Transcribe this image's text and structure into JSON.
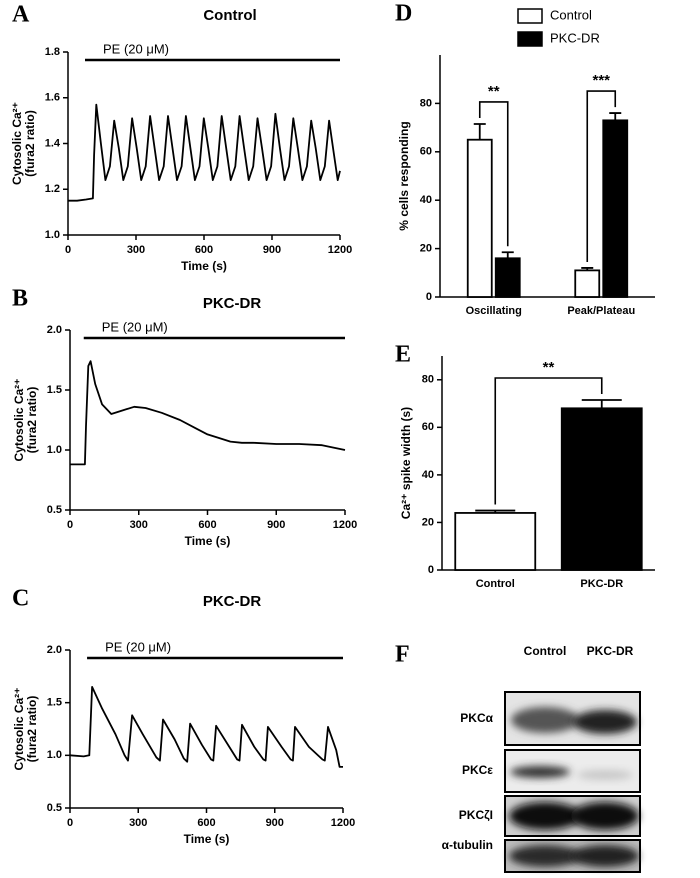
{
  "chart_data": [
    {
      "type": "line",
      "label": "A",
      "title": "Control",
      "x_label": "Time (s)",
      "y_label": [
        "Cytosolic Ca²⁺",
        "(fura2 ratio)"
      ],
      "stimulus": {
        "text": "PE (20 μM)",
        "start": 75,
        "end": 1200
      },
      "xlim": [
        0,
        1200
      ],
      "xticks": [
        0,
        300,
        600,
        900,
        1200
      ],
      "ylim": [
        1,
        1.8
      ],
      "yticks": [
        {
          "value": 1,
          "label": "1.0"
        },
        1.2,
        1.4,
        1.6,
        1.8
      ],
      "color": "#000000",
      "x": [
        0,
        40,
        80,
        110,
        115,
        125,
        145,
        165,
        185,
        204,
        224,
        244,
        264,
        283,
        303,
        323,
        343,
        362,
        382,
        402,
        422,
        441,
        461,
        481,
        501,
        520,
        540,
        560,
        580,
        599,
        619,
        639,
        659,
        678,
        698,
        718,
        738,
        757,
        777,
        797,
        817,
        836,
        856,
        876,
        896,
        915,
        935,
        955,
        975,
        994,
        1014,
        1034,
        1054,
        1073,
        1093,
        1113,
        1133,
        1152,
        1172,
        1190,
        1200
      ],
      "values": [
        1.15,
        1.15,
        1.155,
        1.16,
        1.35,
        1.57,
        1.4,
        1.24,
        1.3,
        1.5,
        1.38,
        1.24,
        1.3,
        1.51,
        1.38,
        1.24,
        1.3,
        1.52,
        1.38,
        1.24,
        1.3,
        1.52,
        1.38,
        1.24,
        1.3,
        1.52,
        1.38,
        1.24,
        1.3,
        1.51,
        1.38,
        1.24,
        1.3,
        1.52,
        1.38,
        1.24,
        1.3,
        1.52,
        1.38,
        1.24,
        1.3,
        1.51,
        1.38,
        1.24,
        1.3,
        1.53,
        1.38,
        1.24,
        1.3,
        1.51,
        1.38,
        1.24,
        1.3,
        1.5,
        1.38,
        1.24,
        1.3,
        1.5,
        1.36,
        1.24,
        1.28
      ]
    },
    {
      "type": "line",
      "label": "B",
      "title": "PKC-DR",
      "x_label": "Time (s)",
      "y_label": [
        "Cytosolic Ca²⁺",
        "(fura2 ratio)"
      ],
      "stimulus": {
        "text": "PE (20 μM)",
        "start": 60,
        "end": 1200
      },
      "xlim": [
        0,
        1200
      ],
      "xticks": [
        0,
        300,
        600,
        900,
        1200
      ],
      "ylim": [
        0.5,
        2
      ],
      "yticks": [
        0.5,
        {
          "value": 1,
          "label": "1.0"
        },
        1.5,
        {
          "value": 2,
          "label": "2.0"
        }
      ],
      "color": "#000000",
      "x": [
        0,
        40,
        65,
        70,
        80,
        90,
        110,
        140,
        180,
        230,
        280,
        330,
        400,
        480,
        550,
        600,
        650,
        700,
        750,
        800,
        900,
        1000,
        1100,
        1150,
        1200
      ],
      "values": [
        0.88,
        0.88,
        0.88,
        1.2,
        1.7,
        1.74,
        1.55,
        1.38,
        1.3,
        1.33,
        1.36,
        1.35,
        1.31,
        1.25,
        1.18,
        1.13,
        1.1,
        1.07,
        1.06,
        1.06,
        1.05,
        1.05,
        1.04,
        1.02,
        1.0
      ]
    },
    {
      "type": "line",
      "label": "C",
      "title": "PKC-DR",
      "x_label": "Time (s)",
      "y_label": [
        "Cytosolic Ca²⁺",
        "(fura2 ratio)"
      ],
      "stimulus": {
        "text": "PE (20 μM)",
        "start": 75,
        "end": 1200
      },
      "xlim": [
        0,
        1200
      ],
      "xticks": [
        0,
        300,
        600,
        900,
        1200
      ],
      "ylim": [
        0.5,
        2
      ],
      "yticks": [
        0.5,
        {
          "value": 1,
          "label": "1.0"
        },
        1.5,
        {
          "value": 2,
          "label": "2.0"
        }
      ],
      "color": "#000000",
      "x": [
        0,
        60,
        85,
        97,
        140,
        200,
        240,
        255,
        273,
        320,
        380,
        395,
        409,
        460,
        500,
        515,
        528,
        580,
        620,
        630,
        642,
        700,
        735,
        745,
        756,
        810,
        850,
        860,
        870,
        930,
        970,
        980,
        989,
        1050,
        1110,
        1120,
        1134,
        1170,
        1185,
        1200
      ],
      "values": [
        1.0,
        0.99,
        1.0,
        1.65,
        1.45,
        1.2,
        1.0,
        0.95,
        1.38,
        1.2,
        0.98,
        0.95,
        1.34,
        1.15,
        0.97,
        0.94,
        1.3,
        1.1,
        0.96,
        0.95,
        1.28,
        1.08,
        0.96,
        0.95,
        1.29,
        1.08,
        0.96,
        0.95,
        1.27,
        1.08,
        0.96,
        0.95,
        1.27,
        1.08,
        0.96,
        0.95,
        1.27,
        1.05,
        0.89,
        0.89
      ]
    },
    {
      "type": "bar",
      "label": "D",
      "categories": [
        "Oscillating",
        "Peak/Plateau"
      ],
      "series": [
        {
          "name": "Control",
          "color": "#ffffff",
          "values": [
            65,
            11
          ],
          "errors": [
            6.5,
            1
          ]
        },
        {
          "name": "PKC-DR",
          "color": "#000000",
          "values": [
            16,
            73
          ],
          "errors": [
            2.5,
            3
          ]
        }
      ],
      "significance": [
        "**",
        "***"
      ],
      "y_label": "% cells responding",
      "ylim": [
        0,
        100
      ],
      "yticks": [
        0,
        20,
        40,
        60,
        80
      ],
      "legend": "top"
    },
    {
      "type": "bar",
      "label": "E",
      "categories": [
        "Control",
        "PKC-DR"
      ],
      "values": [
        24,
        68
      ],
      "errors": [
        1,
        3.5
      ],
      "colors": [
        "#ffffff",
        "#000000"
      ],
      "significance": [
        "**"
      ],
      "y_label": "Ca²⁺ spike width (s)",
      "ylim": [
        0,
        90
      ],
      "yticks": [
        0,
        20,
        40,
        60,
        80
      ]
    }
  ],
  "blot": {
    "label": "F",
    "lanes": [
      "Control",
      "PKC-DR"
    ],
    "proteins": [
      "PKCα",
      "PKCε",
      "PKCζI",
      "α-tubulin"
    ]
  }
}
